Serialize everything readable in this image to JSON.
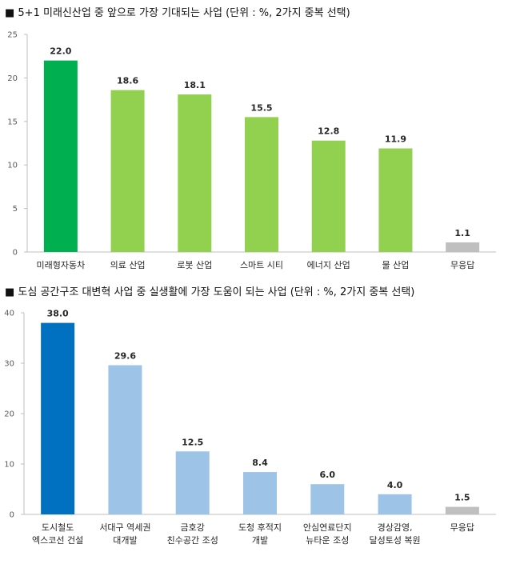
{
  "chart_data": [
    {
      "type": "bar",
      "title": "■ 5+1 미래신산업 중 앞으로 가장 기대되는 사업 (단위 : %, 2가지 중복 선택)",
      "categories": [
        [
          "미래형자동차"
        ],
        [
          "의료 산업"
        ],
        [
          "로봇 산업"
        ],
        [
          "스마트 시티"
        ],
        [
          "에너지 산업"
        ],
        [
          "물 산업"
        ],
        [
          "무응답"
        ]
      ],
      "values": [
        22.0,
        18.6,
        18.1,
        15.5,
        12.8,
        11.9,
        1.1
      ],
      "value_labels": [
        "22.0",
        "18.6",
        "18.1",
        "15.5",
        "12.8",
        "11.9",
        "1.1"
      ],
      "colors": [
        "#00b050",
        "#92d050",
        "#92d050",
        "#92d050",
        "#92d050",
        "#92d050",
        "#bfbfbf"
      ],
      "ylim": [
        0,
        25
      ],
      "yticks": [
        0,
        5,
        10,
        15,
        20,
        25
      ],
      "xlabel": "",
      "ylabel": "",
      "grid": false,
      "legend": "none"
    },
    {
      "type": "bar",
      "title": "■ 도심 공간구조 대변혁 사업 중 실생활에 가장 도움이 되는 사업 (단위 : %, 2가지 중복 선택)",
      "categories": [
        [
          "도시철도",
          "엑스코선 건설"
        ],
        [
          "서대구 역세권",
          "대개발"
        ],
        [
          "금호강",
          "친수공간 조성"
        ],
        [
          "도청 후적지",
          "개발"
        ],
        [
          "안심연료단지",
          "뉴타운 조성"
        ],
        [
          "경상감영,",
          "달성토성 복원"
        ],
        [
          "무응답"
        ]
      ],
      "values": [
        38.0,
        29.6,
        12.5,
        8.4,
        6.0,
        4.0,
        1.5
      ],
      "value_labels": [
        "38.0",
        "29.6",
        "12.5",
        "8.4",
        "6.0",
        "4.0",
        "1.5"
      ],
      "colors": [
        "#0070c0",
        "#9dc3e6",
        "#9dc3e6",
        "#9dc3e6",
        "#9dc3e6",
        "#9dc3e6",
        "#bfbfbf"
      ],
      "ylim": [
        0,
        40
      ],
      "yticks": [
        0,
        10,
        20,
        30,
        40
      ],
      "xlabel": "",
      "ylabel": "",
      "grid": false,
      "legend": "none"
    }
  ]
}
